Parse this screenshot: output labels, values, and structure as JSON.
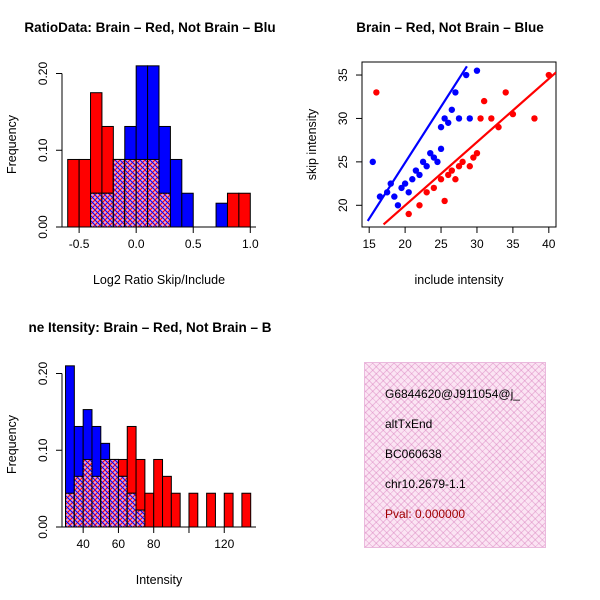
{
  "colors": {
    "brain": "#FF0000",
    "not_brain": "#0000FF",
    "overlap_fill": "#E2A0D8",
    "axis": "#000000",
    "info_bg": "#FBE4F3",
    "pval": "#A00000"
  },
  "chart_data": [
    {
      "type": "bar",
      "title": "RatioData: Brain – Red, Not Brain – Blu",
      "xlabel": "Log2 Ratio Skip/Include",
      "ylabel": "Frequency",
      "xlim": [
        -0.65,
        1.05
      ],
      "ylim": [
        0,
        0.215
      ],
      "xticks": {
        "values": [
          -0.5,
          0.0,
          0.5,
          1.0
        ],
        "labels": [
          "-0.5",
          "0.0",
          "0.5",
          "1.0"
        ]
      },
      "yticks": {
        "values": [
          0,
          0.1,
          0.2
        ],
        "labels": [
          "0.00",
          "0.10",
          "0.20"
        ]
      },
      "bin_start": -0.6,
      "bin_width": 0.1,
      "series": [
        {
          "name": "Brain",
          "color": "#FF0000",
          "values": [
            0.088,
            0.088,
            0.175,
            0.131,
            0.088,
            0.088,
            0.088,
            0.088,
            0.044,
            0,
            0,
            0,
            0,
            0,
            0.044,
            0.044
          ]
        },
        {
          "name": "Not Brain",
          "color": "#0000FF",
          "values": [
            0,
            0,
            0.044,
            0.044,
            0.088,
            0.131,
            0.21,
            0.21,
            0.131,
            0.088,
            0.044,
            0,
            0,
            0.031,
            0,
            0
          ]
        }
      ]
    },
    {
      "type": "scatter",
      "title": "Brain – Red, Not Brain – Blue",
      "xlabel": "include intensity",
      "ylabel": "skip intensity",
      "xlim": [
        14,
        41
      ],
      "ylim": [
        17.5,
        36.5
      ],
      "xticks": {
        "values": [
          15,
          20,
          25,
          30,
          35,
          40
        ],
        "labels": [
          "15",
          "20",
          "25",
          "30",
          "35",
          "40"
        ]
      },
      "yticks": {
        "values": [
          20,
          25,
          30,
          35
        ],
        "labels": [
          "20",
          "25",
          "30",
          "35"
        ]
      },
      "series": [
        {
          "name": "Brain",
          "color": "#FF0000",
          "fit_line": [
            [
              17,
              17.8
            ],
            [
              41,
              35.3
            ]
          ],
          "points": [
            [
              16,
              33
            ],
            [
              20.5,
              19
            ],
            [
              22,
              20
            ],
            [
              23,
              21.5
            ],
            [
              24,
              22
            ],
            [
              25,
              23
            ],
            [
              25.5,
              20.5
            ],
            [
              26,
              23.5
            ],
            [
              26.5,
              24
            ],
            [
              27,
              23
            ],
            [
              27.5,
              24.5
            ],
            [
              28,
              25
            ],
            [
              29,
              24.5
            ],
            [
              29.5,
              25.5
            ],
            [
              30,
              26
            ],
            [
              30.5,
              30
            ],
            [
              31,
              32
            ],
            [
              32,
              30
            ],
            [
              33,
              29
            ],
            [
              34,
              33
            ],
            [
              35,
              30.5
            ],
            [
              38,
              30
            ],
            [
              40,
              35
            ]
          ]
        },
        {
          "name": "Not Brain",
          "color": "#0000FF",
          "fit_line": [
            [
              14.8,
              18.2
            ],
            [
              28.6,
              36
            ]
          ],
          "points": [
            [
              15.5,
              25
            ],
            [
              16.5,
              21
            ],
            [
              17.5,
              21.5
            ],
            [
              18,
              22.5
            ],
            [
              18.5,
              21
            ],
            [
              19,
              20
            ],
            [
              19.5,
              22
            ],
            [
              20,
              22.5
            ],
            [
              20.5,
              21.5
            ],
            [
              21,
              23
            ],
            [
              21.5,
              24
            ],
            [
              22,
              23.5
            ],
            [
              22.5,
              25
            ],
            [
              23,
              24.5
            ],
            [
              23.5,
              26
            ],
            [
              24,
              25.5
            ],
            [
              24.5,
              25
            ],
            [
              25,
              26.5
            ],
            [
              25,
              29
            ],
            [
              25.5,
              30
            ],
            [
              26,
              29.5
            ],
            [
              26.5,
              31
            ],
            [
              27,
              33
            ],
            [
              27.5,
              30
            ],
            [
              28.5,
              35
            ],
            [
              29,
              30
            ],
            [
              30,
              35.5
            ]
          ]
        }
      ]
    },
    {
      "type": "bar",
      "title": "ne Itensity: Brain – Red, Not Brain – B",
      "xlabel": "Intensity",
      "ylabel": "Frequency",
      "xlim": [
        28,
        138
      ],
      "ylim": [
        0,
        0.215
      ],
      "xticks": {
        "values": [
          40,
          60,
          80,
          100,
          120
        ],
        "labels": [
          "40",
          "60",
          "80",
          "",
          "120"
        ]
      },
      "yticks": {
        "values": [
          0,
          0.1,
          0.2
        ],
        "labels": [
          "0.00",
          "0.10",
          "0.20"
        ]
      },
      "bin_start": 30,
      "bin_width": 5,
      "series": [
        {
          "name": "Brain",
          "color": "#FF0000",
          "values": [
            0.044,
            0.066,
            0.088,
            0.066,
            0.088,
            0.088,
            0.088,
            0.131,
            0.088,
            0.044,
            0.088,
            0.066,
            0.044,
            0,
            0.044,
            0,
            0.044,
            0,
            0.044,
            0,
            0.044
          ]
        },
        {
          "name": "Not Brain",
          "color": "#0000FF",
          "values": [
            0.21,
            0.131,
            0.153,
            0.131,
            0.109,
            0.088,
            0.066,
            0.044,
            0.022,
            0,
            0,
            0,
            0,
            0,
            0,
            0,
            0,
            0,
            0,
            0,
            0
          ]
        }
      ]
    }
  ],
  "info_box": {
    "lines": [
      {
        "text": "G6844620@J911054@j_",
        "color": "#000000"
      },
      {
        "text": "altTxEnd",
        "color": "#000000"
      },
      {
        "text": "BC060638",
        "color": "#000000"
      },
      {
        "text": "chr10.2679-1.1",
        "color": "#000000"
      },
      {
        "text": "Pval: 0.000000",
        "color": "#A00000"
      }
    ]
  }
}
